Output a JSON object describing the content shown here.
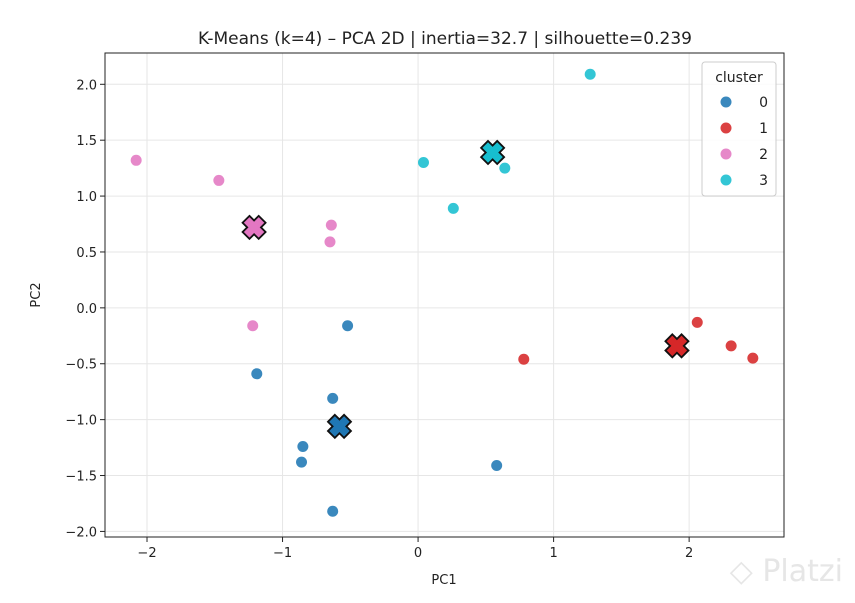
{
  "chart_data": {
    "type": "scatter",
    "title": "K-Means (k=4) – PCA 2D | inertia=32.7 | silhouette=0.239",
    "xlabel": "PC1",
    "ylabel": "PC2",
    "xlim": [
      -2.31,
      2.7
    ],
    "ylim": [
      -2.05,
      2.28
    ],
    "xticks": [
      -2,
      -1,
      0,
      1,
      2
    ],
    "xtick_labels": [
      "−2",
      "−1",
      "0",
      "1",
      "2"
    ],
    "yticks": [
      -2.0,
      -1.5,
      -1.0,
      -0.5,
      0.0,
      0.5,
      1.0,
      1.5,
      2.0
    ],
    "ytick_labels": [
      "−2.0",
      "−1.5",
      "−1.0",
      "−0.5",
      "0.0",
      "0.5",
      "1.0",
      "1.5",
      "2.0"
    ],
    "grid": true,
    "legend": {
      "title": "cluster",
      "placement": "top-right"
    },
    "series": [
      {
        "name": "0",
        "color": "#1f77b4",
        "points": [
          [
            -0.52,
            -0.16
          ],
          [
            -1.19,
            -0.59
          ],
          [
            -0.63,
            -0.81
          ],
          [
            -0.85,
            -1.24
          ],
          [
            -0.86,
            -1.38
          ],
          [
            -0.63,
            -1.82
          ],
          [
            0.58,
            -1.41
          ]
        ],
        "centroid": [
          -0.58,
          -1.06
        ]
      },
      {
        "name": "1",
        "color": "#d62728",
        "points": [
          [
            0.78,
            -0.46
          ],
          [
            2.06,
            -0.13
          ],
          [
            2.31,
            -0.34
          ],
          [
            2.47,
            -0.45
          ]
        ],
        "centroid": [
          1.91,
          -0.34
        ]
      },
      {
        "name": "2",
        "color": "#e377c2",
        "points": [
          [
            -2.08,
            1.32
          ],
          [
            -1.47,
            1.14
          ],
          [
            -0.64,
            0.74
          ],
          [
            -0.65,
            0.59
          ],
          [
            -1.22,
            -0.16
          ]
        ],
        "centroid": [
          -1.21,
          0.72
        ]
      },
      {
        "name": "3",
        "color": "#17becf",
        "points": [
          [
            0.04,
            1.3
          ],
          [
            0.26,
            0.89
          ],
          [
            0.64,
            1.25
          ],
          [
            1.27,
            2.09
          ]
        ],
        "centroid": [
          0.55,
          1.39
        ]
      }
    ]
  },
  "watermark": "Platzi"
}
